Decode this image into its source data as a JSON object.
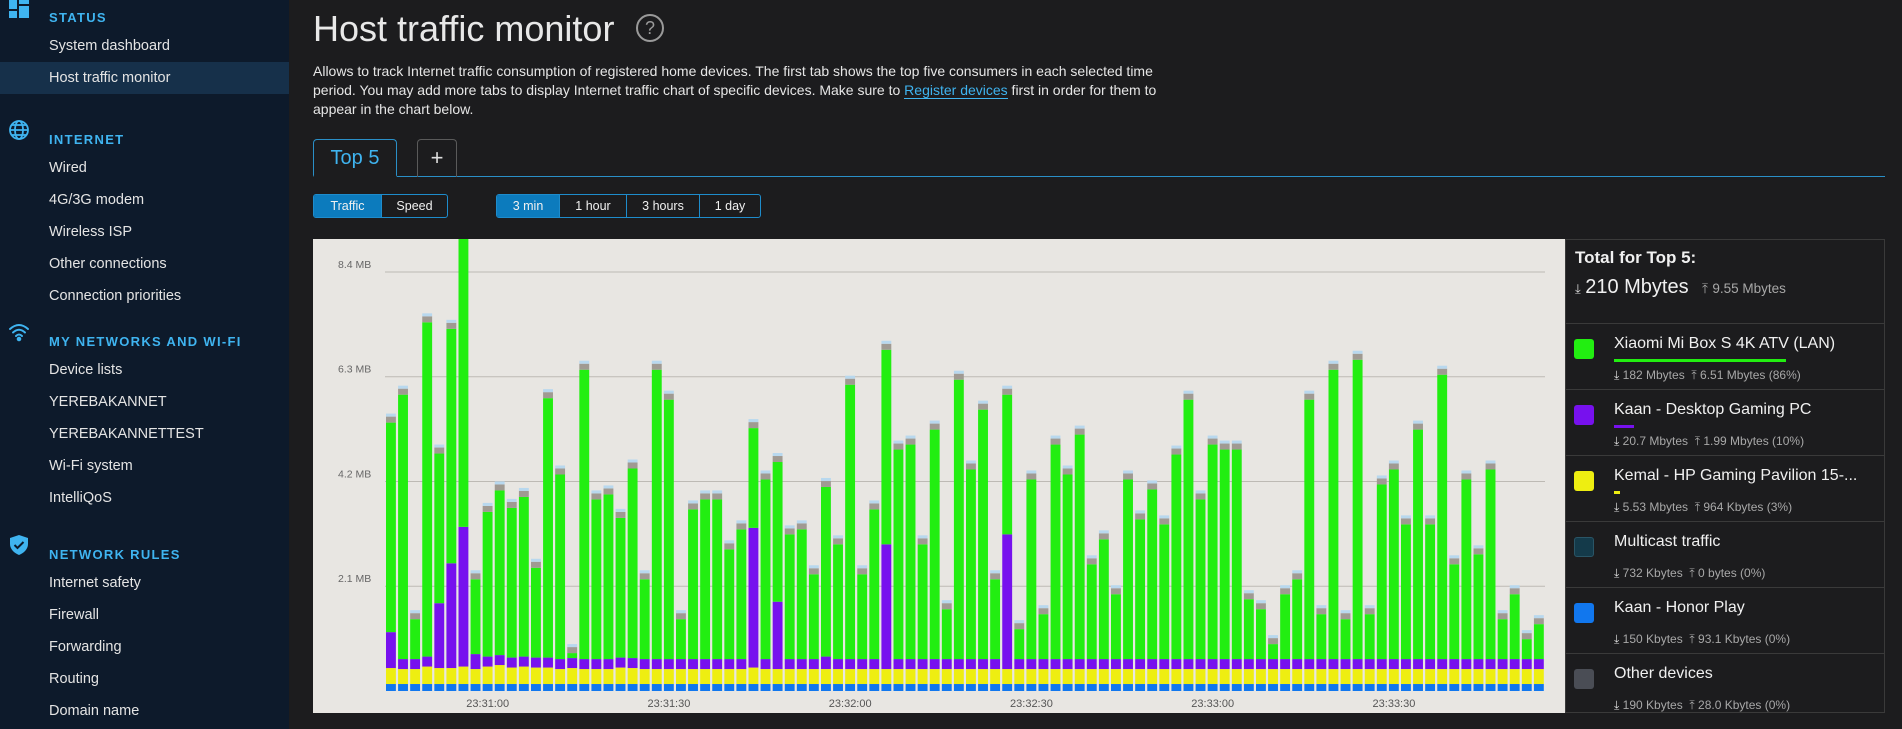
{
  "sidebar": {
    "sections": [
      {
        "title": "STATUS",
        "icon": "dashboard-icon",
        "items": [
          {
            "label": "System dashboard",
            "active": false
          },
          {
            "label": "Host traffic monitor",
            "active": true
          }
        ]
      },
      {
        "title": "INTERNET",
        "icon": "globe-icon",
        "items": [
          {
            "label": "Wired"
          },
          {
            "label": "4G/3G modem"
          },
          {
            "label": "Wireless ISP"
          },
          {
            "label": "Other connections"
          },
          {
            "label": "Connection priorities"
          }
        ]
      },
      {
        "title": "MY NETWORKS AND WI-FI",
        "icon": "wifi-icon",
        "items": [
          {
            "label": "Device lists"
          },
          {
            "label": "YEREBAKANNET"
          },
          {
            "label": "YEREBAKANNETTEST"
          },
          {
            "label": "Wi-Fi system"
          },
          {
            "label": "IntelliQoS"
          }
        ]
      },
      {
        "title": "NETWORK RULES",
        "icon": "shield-icon",
        "items": [
          {
            "label": "Internet safety"
          },
          {
            "label": "Firewall"
          },
          {
            "label": "Forwarding"
          },
          {
            "label": "Routing"
          },
          {
            "label": "Domain name"
          }
        ]
      }
    ]
  },
  "page": {
    "title": "Host traffic monitor",
    "help_icon": "?",
    "description_before": "Allows to track Internet traffic consumption of registered home devices. The first tab shows the top five consumers in each selected time period. You may add more tabs to display Internet traffic chart of specific devices. Make sure to ",
    "description_link": "Register devices",
    "description_after": " first in order for them to appear in the chart below."
  },
  "tabs": {
    "top5": "Top 5",
    "add": "+"
  },
  "mode_toggle": {
    "options": [
      "Traffic",
      "Speed"
    ],
    "selected": "Traffic"
  },
  "period_toggle": {
    "options": [
      "3 min",
      "1 hour",
      "3 hours",
      "1 day"
    ],
    "selected": "3 min"
  },
  "colors": {
    "xiaomi": "#22ee11",
    "kaan_pc": "#7711ee",
    "kemal": "#eeee11",
    "multicast": "#143a4a",
    "honor": "#1177ee",
    "other": "#4a4d55",
    "upload_gray": "#a09a92",
    "upload_light": "#b8d8ee",
    "accent": "#3fb4f0"
  },
  "legend": {
    "total_title": "Total for Top 5:",
    "total_down": "210 Mbytes",
    "total_up": "9.55 Mbytes",
    "items": [
      {
        "name": "Xiaomi Mi Box S 4K ATV (LAN)",
        "color": "#22ee11",
        "down": "182 Mbytes",
        "up": "6.51 Mbytes (86%)",
        "share": 0.86
      },
      {
        "name": "Kaan - Desktop Gaming PC",
        "color": "#7711ee",
        "down": "20.7 Mbytes",
        "up": "1.99 Mbytes (10%)",
        "share": 0.1
      },
      {
        "name": "Kemal - HP Gaming Pavilion 15-...",
        "color": "#eeee11",
        "down": "5.53 Mbytes",
        "up": "964 Kbytes (3%)",
        "share": 0.03
      },
      {
        "name": "Multicast traffic",
        "color": "#143a4a",
        "down": "732 Kbytes",
        "up": "0 bytes (0%)",
        "share": 0
      },
      {
        "name": "Kaan - Honor Play",
        "color": "#1177ee",
        "down": "150 Kbytes",
        "up": "93.1 Kbytes (0%)",
        "share": 0
      },
      {
        "name": "Other devices",
        "color": "#4a4d55",
        "down": "190 Kbytes",
        "up": "28.0 Kbytes (0%)",
        "share": 0
      }
    ]
  },
  "chart_data": {
    "type": "bar",
    "stacked": true,
    "ytick_labels": [
      "2.1 MB",
      "4.2 MB",
      "6.3 MB",
      "8.4 MB"
    ],
    "ytick_values": [
      2.1,
      4.2,
      6.3,
      8.4
    ],
    "ylim": [
      0,
      8.9
    ],
    "xtick_labels": [
      "23:31:00",
      "23:31:30",
      "23:32:00",
      "23:32:30",
      "23:33:00",
      "23:33:30"
    ],
    "xtick_bar_index": [
      8,
      23,
      38,
      53,
      68,
      83
    ],
    "grid": true,
    "series": [
      {
        "name": "Kaan - Honor Play",
        "color": "#1177ee",
        "values": [
          0.14,
          0.14,
          0.14,
          0.14,
          0.14,
          0.14,
          0.14,
          0.14,
          0.14,
          0.14,
          0.14,
          0.14,
          0.14,
          0.14,
          0.14,
          0.14,
          0.14,
          0.14,
          0.14,
          0.14,
          0.14,
          0.14,
          0.14,
          0.14,
          0.14,
          0.14,
          0.14,
          0.14,
          0.14,
          0.14,
          0.14,
          0.14,
          0.14,
          0.14,
          0.14,
          0.14,
          0.14,
          0.14,
          0.14,
          0.14,
          0.14,
          0.14,
          0.14,
          0.14,
          0.14,
          0.14,
          0.14,
          0.14,
          0.14,
          0.14,
          0.14,
          0.14,
          0.14,
          0.14,
          0.14,
          0.14,
          0.14,
          0.14,
          0.14,
          0.14,
          0.14,
          0.14,
          0.14,
          0.14,
          0.14,
          0.14,
          0.14,
          0.14,
          0.14,
          0.14,
          0.14,
          0.14,
          0.14,
          0.14,
          0.14,
          0.14,
          0.14,
          0.14,
          0.14,
          0.14,
          0.14,
          0.14,
          0.14,
          0.14,
          0.14,
          0.14,
          0.14,
          0.14,
          0.14,
          0.14,
          0.14,
          0.14,
          0.14,
          0.14,
          0.14,
          0.14
        ]
      },
      {
        "name": "Kemal - HP Gaming Pavilion 15-...",
        "color": "#eeee11",
        "values": [
          0.32,
          0.3,
          0.3,
          0.35,
          0.32,
          0.32,
          0.35,
          0.3,
          0.35,
          0.38,
          0.33,
          0.35,
          0.33,
          0.33,
          0.3,
          0.32,
          0.3,
          0.3,
          0.3,
          0.33,
          0.32,
          0.3,
          0.3,
          0.3,
          0.3,
          0.3,
          0.3,
          0.3,
          0.3,
          0.3,
          0.33,
          0.3,
          0.3,
          0.3,
          0.3,
          0.3,
          0.3,
          0.3,
          0.3,
          0.3,
          0.3,
          0.3,
          0.3,
          0.3,
          0.3,
          0.3,
          0.3,
          0.3,
          0.3,
          0.3,
          0.3,
          0.3,
          0.3,
          0.3,
          0.3,
          0.3,
          0.3,
          0.3,
          0.3,
          0.3,
          0.3,
          0.3,
          0.3,
          0.3,
          0.3,
          0.3,
          0.3,
          0.3,
          0.3,
          0.3,
          0.3,
          0.3,
          0.3,
          0.3,
          0.3,
          0.3,
          0.3,
          0.3,
          0.3,
          0.3,
          0.3,
          0.3,
          0.3,
          0.3,
          0.3,
          0.3,
          0.3,
          0.3,
          0.3,
          0.3,
          0.3,
          0.3,
          0.3,
          0.3,
          0.3,
          0.3
        ]
      },
      {
        "name": "Kaan - Desktop Gaming PC",
        "color": "#7711ee",
        "values": [
          0.72,
          0.2,
          0.2,
          0.2,
          1.3,
          2.1,
          2.8,
          0.3,
          0.2,
          0.2,
          0.2,
          0.2,
          0.2,
          0.2,
          0.2,
          0.2,
          0.2,
          0.2,
          0.2,
          0.2,
          0.2,
          0.2,
          0.2,
          0.2,
          0.2,
          0.2,
          0.2,
          0.2,
          0.2,
          0.2,
          2.8,
          0.2,
          1.35,
          0.2,
          0.2,
          0.2,
          0.25,
          0.2,
          0.2,
          0.2,
          0.2,
          2.5,
          0.2,
          0.2,
          0.2,
          0.2,
          0.2,
          0.2,
          0.2,
          0.2,
          0.2,
          2.7,
          0.2,
          0.2,
          0.2,
          0.2,
          0.2,
          0.2,
          0.2,
          0.2,
          0.2,
          0.2,
          0.2,
          0.2,
          0.2,
          0.2,
          0.2,
          0.2,
          0.2,
          0.2,
          0.2,
          0.2,
          0.2,
          0.2,
          0.2,
          0.2,
          0.2,
          0.2,
          0.2,
          0.2,
          0.2,
          0.2,
          0.2,
          0.2,
          0.2,
          0.2,
          0.2,
          0.2,
          0.2,
          0.2,
          0.2,
          0.2,
          0.2,
          0.2,
          0.2,
          0.2
        ]
      },
      {
        "name": "Xiaomi Mi Box S 4K ATV (LAN)",
        "color": "#22ee11",
        "values": [
          4.2,
          5.3,
          0.8,
          6.7,
          3.0,
          4.7,
          6.0,
          1.5,
          2.9,
          3.3,
          3.0,
          3.2,
          1.8,
          5.2,
          3.7,
          0.1,
          5.8,
          3.2,
          3.3,
          2.8,
          3.8,
          1.6,
          5.8,
          5.2,
          0.8,
          3.0,
          3.2,
          3.2,
          2.2,
          2.6,
          2.0,
          3.6,
          2.8,
          2.5,
          2.6,
          1.7,
          3.4,
          2.3,
          5.5,
          1.7,
          3.0,
          3.9,
          4.2,
          4.3,
          2.3,
          4.6,
          1.0,
          5.6,
          3.8,
          5.0,
          1.6,
          2.8,
          0.6,
          3.6,
          0.9,
          4.3,
          3.7,
          4.5,
          1.9,
          2.4,
          1.3,
          3.6,
          2.8,
          3.4,
          2.7,
          4.1,
          5.2,
          3.2,
          4.3,
          4.2,
          4.2,
          1.2,
          1.0,
          0.3,
          1.3,
          1.6,
          5.2,
          0.9,
          5.8,
          0.8,
          6.0,
          0.9,
          3.5,
          3.8,
          2.7,
          4.6,
          2.7,
          5.7,
          1.9,
          3.6,
          2.1,
          3.8,
          0.8,
          1.3,
          0.4,
          0.7
        ]
      }
    ]
  }
}
